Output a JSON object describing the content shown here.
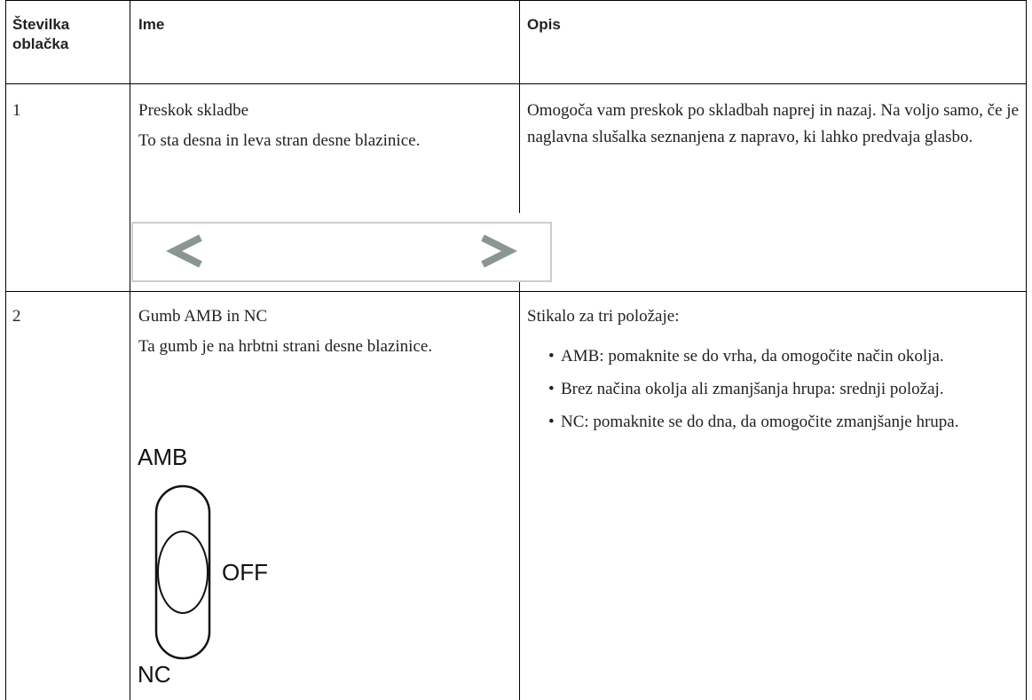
{
  "table": {
    "header": [
      "Številka oblačka",
      "Ime",
      "Opis"
    ],
    "rows": [
      {
        "number": "1",
        "name": "Preskok skladbe",
        "name_note": "To sta desna in leva stran desne blazinice.",
        "description": "Omogoča vam preskok po skladbah naprej in nazaj. Na voljo samo, če je naglavna slušalka seznanjena z napravo, ki lahko predvaja glasbo."
      },
      {
        "number": "2",
        "name": "Gumb AMB in NC",
        "name_note": "Ta gumb je na hrbtni strani desne blazinice.",
        "description": "Stikalo za tri položaje:",
        "items": [
          "AMB: pomaknite se do vrha, da omogočite način okolja.",
          "Brez načina okolja ali zmanjšanja hrupa: srednji položaj.",
          "NC: pomaknite se do dna, da omogočite zmanjšanje hrupa."
        ],
        "figure_labels": [
          "AMB",
          "OFF",
          "NC"
        ]
      }
    ]
  }
}
